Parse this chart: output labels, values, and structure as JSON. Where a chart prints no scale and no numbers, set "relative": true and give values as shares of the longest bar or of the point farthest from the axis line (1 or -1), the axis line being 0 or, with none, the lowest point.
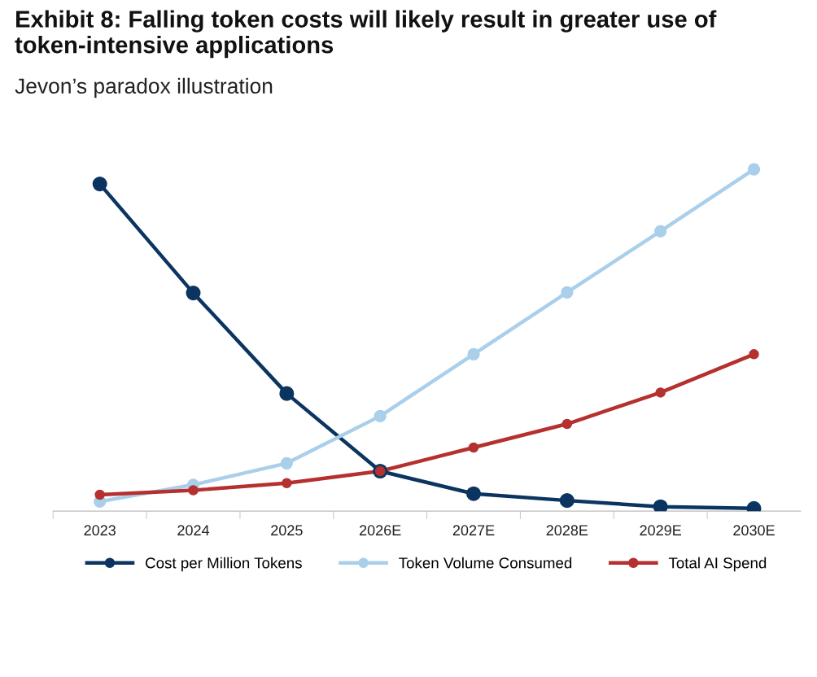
{
  "chart_data": {
    "type": "line",
    "title": "Exhibit 8: Falling token costs will likely result in greater use of token-intensive applications",
    "subtitle": "Jevon’s paradox illustration",
    "relative": true,
    "categories": [
      "2023",
      "2024",
      "2025",
      "2026E",
      "2027E",
      "2028E",
      "2029E",
      "2030E"
    ],
    "series": [
      {
        "name": "Cost per Million Tokens",
        "color": "#0b3560",
        "values": [
          0.957,
          0.638,
          0.344,
          0.117,
          0.051,
          0.031,
          0.013,
          0.008
        ]
      },
      {
        "name": "Token Volume Consumed",
        "color": "#a9cfea",
        "values": [
          0.028,
          0.077,
          0.14,
          0.278,
          0.459,
          0.64,
          0.819,
          1
        ]
      },
      {
        "name": "Total AI Spend",
        "color": "#b5302f",
        "values": [
          0.048,
          0.061,
          0.082,
          0.117,
          0.186,
          0.255,
          0.347,
          0.459
        ]
      }
    ],
    "marker": "circle",
    "legend": "bottom",
    "grid": false
  }
}
